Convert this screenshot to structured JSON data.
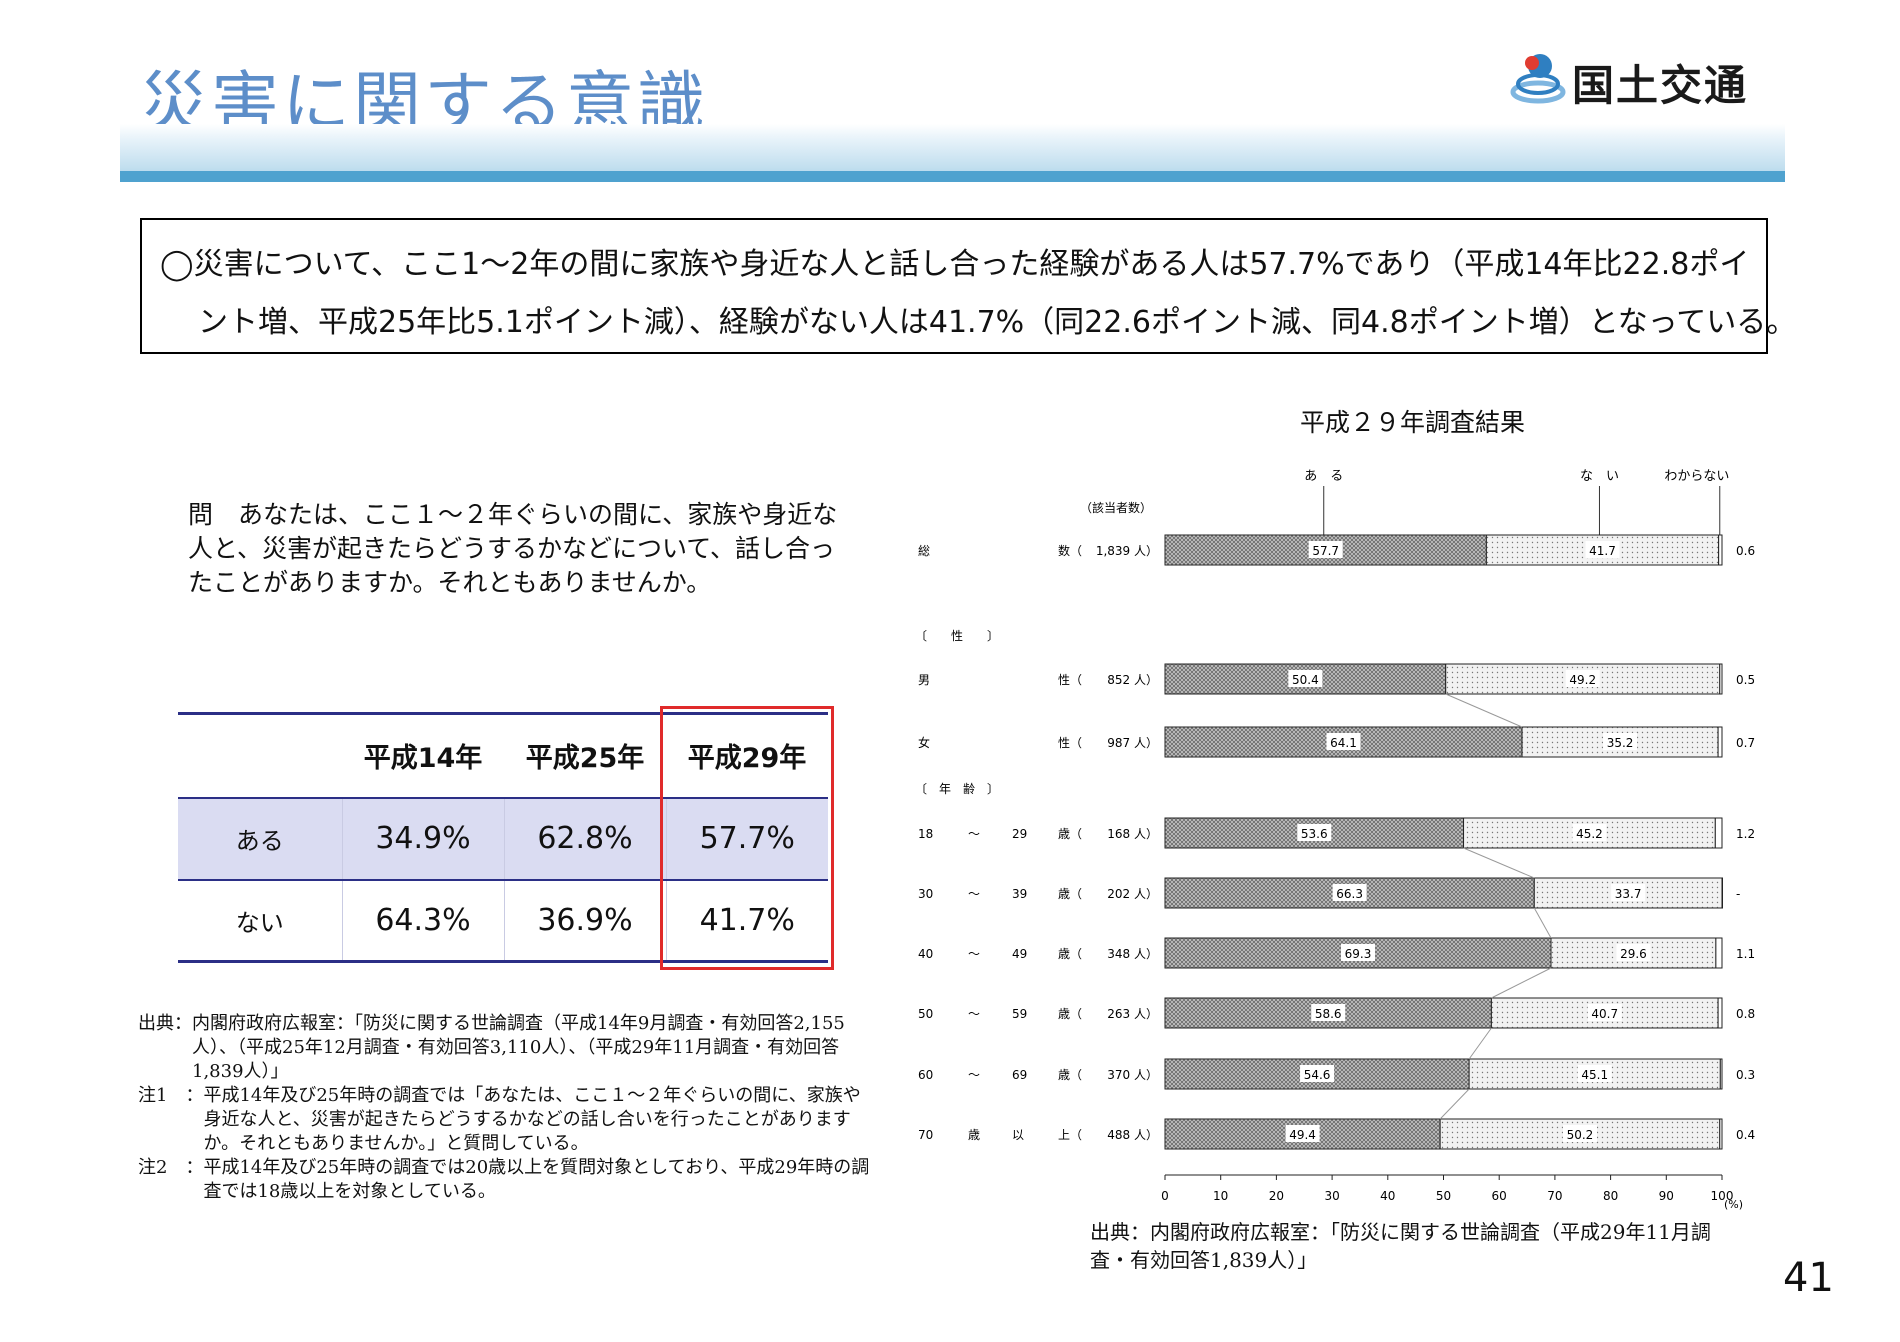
{
  "header": {
    "title": "災害に関する意識",
    "logo_text": "国土交通省",
    "logo_colors": {
      "blue": "#2f7fc1",
      "red": "#e03c31",
      "light": "#7fb6e0"
    }
  },
  "summary": {
    "line1": "◯災害について、ここ1〜2年の間に家族や身近な人と話し合った経験がある人は57.7%であり（平成14年比22.8ポイ",
    "line2": "ント増、平成25年比5.1ポイント減）、経験がない人は41.7%（同22.6ポイント減、同4.8ポイント増）となっている。"
  },
  "question": "問　あなたは、ここ１〜２年ぐらいの間に、家族や身近な人と、災害が起きたらどうするかなどについて、話し合ったことがありますか。それともありませんか。",
  "comparison_table": {
    "columns": [
      "平成14年",
      "平成25年",
      "平成29年"
    ],
    "rows": [
      {
        "label": "ある",
        "values": [
          "34.9%",
          "62.8%",
          "57.7%"
        ]
      },
      {
        "label": "ない",
        "values": [
          "64.3%",
          "36.9%",
          "41.7%"
        ]
      }
    ],
    "highlight_color": "#e02a2a"
  },
  "notes": [
    {
      "label": "出典：",
      "text": "内閣府政府広報室：「防災に関する世論調査（平成14年9月調査・有効回答2,155人）、（平成25年12月調査・有効回答3,110人）、（平成29年11月調査・有効回答1,839人）」"
    },
    {
      "label": "注1　：",
      "text": "平成14年及び25年時の調査では「あなたは、ここ１〜２年ぐらいの間に、家族や身近な人と、災害が起きたらどうするかなどの話し合いを行ったことがありますか。それともありませんか。」と質問している。"
    },
    {
      "label": "注2　：",
      "text": "平成14年及び25年時の調査では20歳以上を質問対象としており、平成29年時の調査では18歳以上を対象としている。"
    }
  ],
  "chart_source": "出典：内閣府政府広報室：「防災に関する世論調査（平成29年11月調査・有効回答1,839人）」",
  "page_number": "41",
  "chart_data": {
    "type": "bar",
    "orientation": "horizontal",
    "stacked": true,
    "title": "平成２９年調査結果",
    "count_header": "（該当者数）",
    "legend": [
      "あ　る",
      "な　い",
      "わからない"
    ],
    "unit": "(%)",
    "xlim": [
      0,
      100
    ],
    "xticks": [
      0,
      10,
      20,
      30,
      40,
      50,
      60,
      70,
      80,
      90,
      100
    ],
    "section_labels": {
      "sex": "〔　　性　　〕",
      "age": "〔　年　齢　〕"
    },
    "series": [
      {
        "name": "ある",
        "color": "#707070"
      },
      {
        "name": "ない",
        "color": "#f2f2f2"
      },
      {
        "name": "わからない",
        "color": "#ffffff"
      }
    ],
    "rows": [
      {
        "group": "total",
        "label": [
          "総",
          "数（"
        ],
        "count": "1,839 人）",
        "values": [
          57.7,
          41.7,
          0.6
        ],
        "labels": [
          "57.7",
          "41.7",
          "0.6"
        ]
      },
      {
        "group": "sex",
        "label": [
          "男",
          "性（"
        ],
        "count": "852 人）",
        "values": [
          50.4,
          49.2,
          0.5
        ],
        "labels": [
          "50.4",
          "49.2",
          "0.5"
        ]
      },
      {
        "group": "sex",
        "label": [
          "女",
          "性（"
        ],
        "count": "987 人）",
        "values": [
          64.1,
          35.2,
          0.7
        ],
        "labels": [
          "64.1",
          "35.2",
          "0.7"
        ]
      },
      {
        "group": "age",
        "label": [
          "18",
          "〜",
          "29",
          "歳（"
        ],
        "count": "168 人）",
        "values": [
          53.6,
          45.2,
          1.2
        ],
        "labels": [
          "53.6",
          "45.2",
          "1.2"
        ]
      },
      {
        "group": "age",
        "label": [
          "30",
          "〜",
          "39",
          "歳（"
        ],
        "count": "202 人）",
        "values": [
          66.3,
          33.7,
          0
        ],
        "labels": [
          "66.3",
          "33.7",
          "-"
        ]
      },
      {
        "group": "age",
        "label": [
          "40",
          "〜",
          "49",
          "歳（"
        ],
        "count": "348 人）",
        "values": [
          69.3,
          29.6,
          1.1
        ],
        "labels": [
          "69.3",
          "29.6",
          "1.1"
        ]
      },
      {
        "group": "age",
        "label": [
          "50",
          "〜",
          "59",
          "歳（"
        ],
        "count": "263 人）",
        "values": [
          58.6,
          40.7,
          0.8
        ],
        "labels": [
          "58.6",
          "40.7",
          "0.8"
        ]
      },
      {
        "group": "age",
        "label": [
          "60",
          "〜",
          "69",
          "歳（"
        ],
        "count": "370 人）",
        "values": [
          54.6,
          45.1,
          0.3
        ],
        "labels": [
          "54.6",
          "45.1",
          "0.3"
        ]
      },
      {
        "group": "age",
        "label": [
          "70",
          "歳",
          "以",
          "上（"
        ],
        "count": "488 人）",
        "values": [
          49.4,
          50.2,
          0.4
        ],
        "labels": [
          "49.4",
          "50.2",
          "0.4"
        ]
      }
    ]
  }
}
